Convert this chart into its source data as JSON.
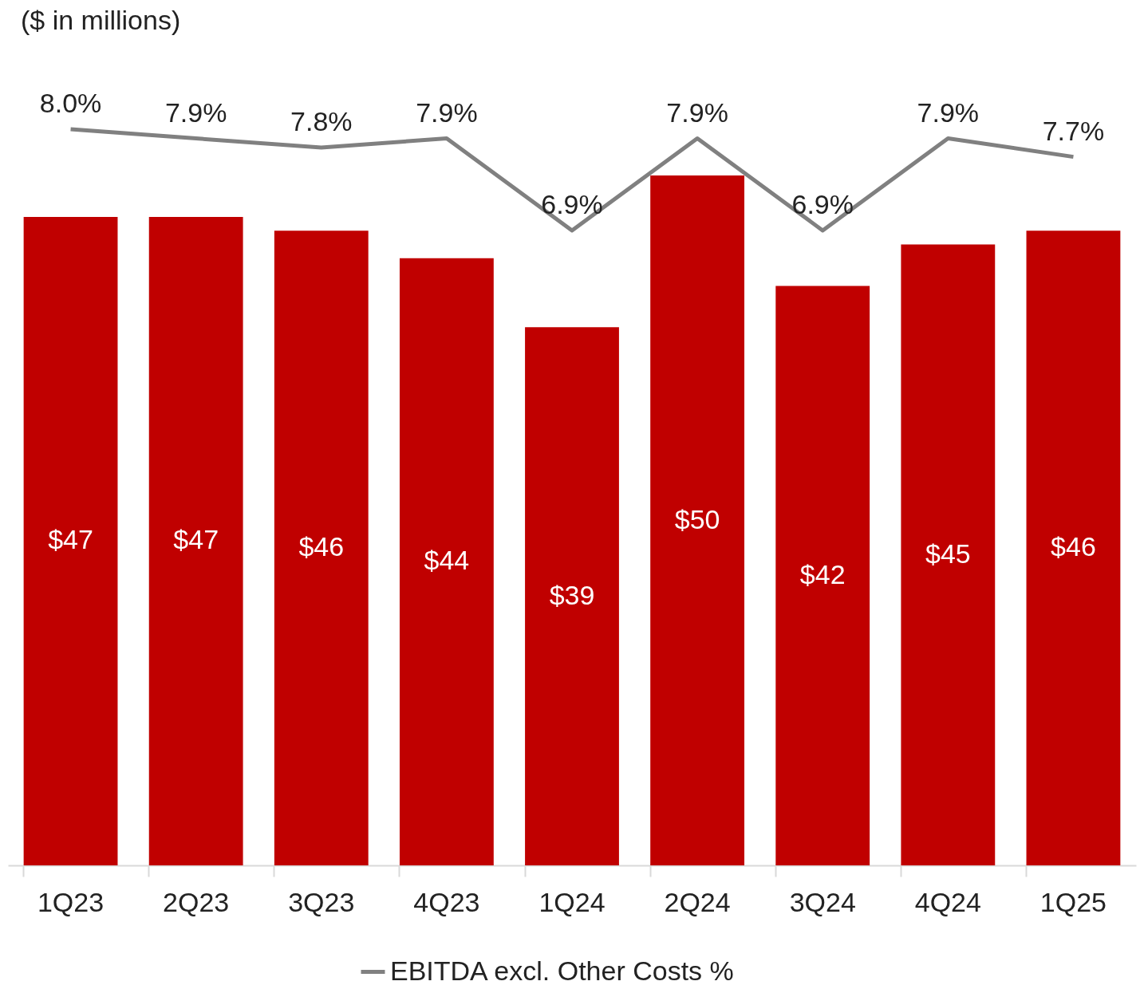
{
  "chart_data": {
    "type": "bar",
    "title": "($ in millions)",
    "categories": [
      "1Q23",
      "2Q23",
      "3Q23",
      "4Q23",
      "1Q24",
      "2Q24",
      "3Q24",
      "4Q24",
      "1Q25"
    ],
    "series": [
      {
        "color": "#c00000",
        "values": [
          47,
          47,
          46,
          44,
          39,
          50,
          42,
          45,
          46
        ],
        "value_labels": [
          "$47",
          "$47",
          "$46",
          "$44",
          "$39",
          "$50",
          "$42",
          "$45",
          "$46"
        ]
      },
      {
        "type": "line",
        "name": "EBITDA excl. Other Costs  %",
        "color": "#808080",
        "axis": "y2",
        "values": [
          8.0,
          7.9,
          7.8,
          7.9,
          6.9,
          7.9,
          6.9,
          7.9,
          7.7
        ],
        "value_labels": [
          "8.0%",
          "7.9%",
          "7.8%",
          "7.9%",
          "6.9%",
          "7.9%",
          "6.9%",
          "7.9%",
          "7.7%"
        ]
      }
    ],
    "tick_labels": "x",
    "legend": "bottom",
    "marker": "none",
    "line_style": "solid"
  }
}
